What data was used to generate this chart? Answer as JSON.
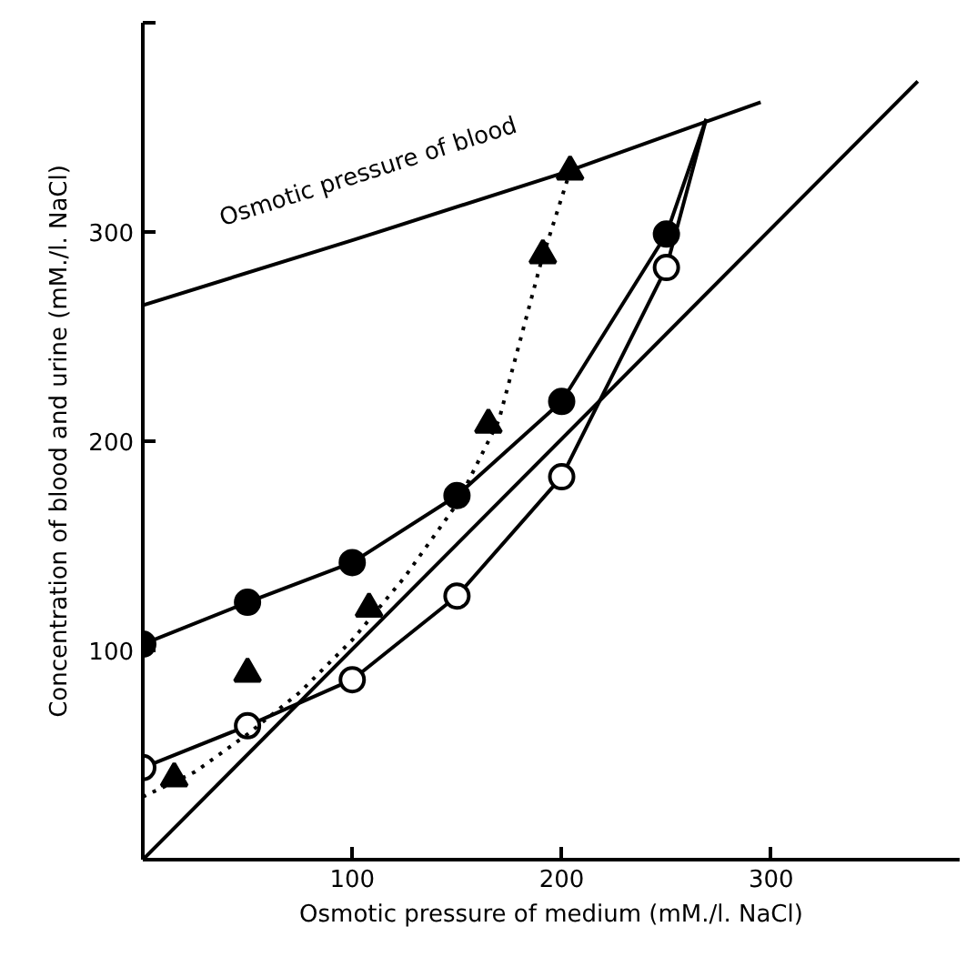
{
  "chart_data": {
    "type": "line",
    "xlabel": "Osmotic pressure of medium (mM./l. NaCl)",
    "ylabel": "Concentration of blood and urine (mM./l. NaCl)",
    "xlim": [
      0,
      390
    ],
    "ylim": [
      0,
      400
    ],
    "xticks": [
      100,
      200,
      300
    ],
    "yticks": [
      100,
      200,
      300,
      {
        "value": 400,
        "label": null
      }
    ],
    "grid": false,
    "series": [
      {
        "color": "#000000",
        "marker": "none",
        "line_style": "solid",
        "x": [
          0,
          100,
          200,
          295
        ],
        "values": [
          265,
          296,
          328,
          362
        ]
      },
      {
        "color": "#000000",
        "marker": "none",
        "line_style": "solid",
        "x": [
          0,
          370
        ],
        "values": [
          0,
          372
        ]
      },
      {
        "color": "#000000",
        "colors": [
          "#000000",
          "#000000",
          "#000000",
          "#000000",
          "#000000",
          "#000000",
          null
        ],
        "marker": "circle",
        "line_style": "solid",
        "x": [
          0,
          50,
          100,
          150,
          200,
          250,
          269
        ],
        "values": [
          103,
          123,
          142,
          174,
          219,
          299,
          354
        ]
      },
      {
        "color": "#000000",
        "colors": [
          "#ffffff",
          "#ffffff",
          "#ffffff",
          "#ffffff",
          "#ffffff",
          "#ffffff",
          null
        ],
        "marker": "circle",
        "line_style": "solid",
        "x": [
          0,
          50,
          100,
          150,
          200,
          250,
          269
        ],
        "values": [
          44,
          64,
          86,
          126,
          183,
          283,
          354
        ]
      },
      {
        "color": "#000000",
        "marker": "none",
        "line_style": "dotted",
        "x": [
          0,
          25,
          50,
          75,
          100,
          125,
          150,
          170,
          190,
          204
        ],
        "values": [
          30,
          42,
          60,
          80,
          105,
          135,
          170,
          210,
          285,
          329
        ]
      },
      {
        "type": "scatter",
        "color": "#000000",
        "marker": "triangle",
        "x": [
          15,
          50,
          108,
          165,
          191,
          204
        ],
        "values": [
          39,
          89,
          120,
          208,
          289,
          329
        ]
      }
    ],
    "annotations": [
      {
        "text": "Osmotic pressure of blood",
        "x": 100,
        "y": 296
      }
    ]
  }
}
